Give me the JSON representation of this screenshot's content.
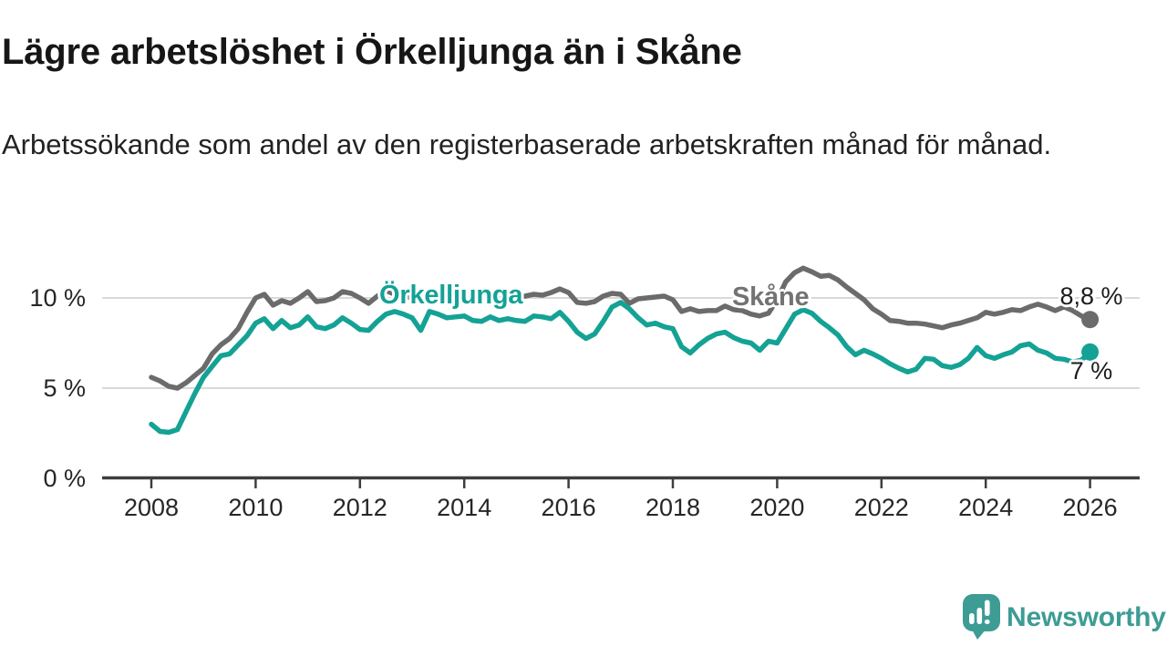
{
  "header": {
    "title": "Lägre arbetslöshet i Örkelljunga än i Skåne",
    "subtitle": "Arbetssökande som andel av den registerbaserade arbetskraften månad för månad."
  },
  "chart_data": {
    "type": "line",
    "unit": "%",
    "grid": "horizontal-light",
    "x_start_year": 2008,
    "x_step_months": 2,
    "xlim": [
      2007.1,
      2026.8
    ],
    "ylim": [
      0,
      12.4
    ],
    "x_ticks": [
      "2008",
      "2010",
      "2012",
      "2014",
      "2016",
      "2018",
      "2020",
      "2022",
      "2024",
      "2026"
    ],
    "y_ticks": [
      {
        "value": 0,
        "label": "0 %"
      },
      {
        "value": 5,
        "label": "5 %"
      },
      {
        "value": 10,
        "label": "10 %"
      }
    ],
    "series": [
      {
        "name": "Skåne",
        "color": "#6b6b6b",
        "label_color": "#737373",
        "end_label": "8,8 %",
        "end_value": 8.8,
        "values": [
          5.6,
          5.4,
          5.1,
          5.0,
          5.3,
          5.7,
          6.1,
          6.9,
          7.4,
          7.75,
          8.3,
          9.2,
          10.0,
          10.2,
          9.6,
          9.85,
          9.7,
          10.0,
          10.35,
          9.8,
          9.85,
          10.0,
          10.35,
          10.25,
          10.0,
          9.7,
          10.1,
          10.4,
          10.2,
          10.1,
          10.0,
          10.15,
          10.3,
          10.25,
          10.15,
          10.2,
          10.15,
          10.0,
          10.1,
          10.05,
          9.95,
          10.0,
          10.05,
          10.1,
          10.2,
          10.15,
          10.3,
          10.5,
          10.3,
          9.75,
          9.7,
          9.8,
          10.1,
          10.25,
          10.2,
          9.7,
          9.95,
          10.0,
          10.05,
          10.1,
          9.9,
          9.25,
          9.4,
          9.25,
          9.3,
          9.3,
          9.55,
          9.35,
          9.3,
          9.1,
          9.0,
          9.15,
          9.9,
          10.9,
          11.4,
          11.65,
          11.45,
          11.2,
          11.25,
          11.0,
          10.6,
          10.25,
          9.9,
          9.4,
          9.1,
          8.75,
          8.7,
          8.6,
          8.6,
          8.55,
          8.45,
          8.35,
          8.5,
          8.6,
          8.75,
          8.9,
          9.2,
          9.1,
          9.2,
          9.35,
          9.3,
          9.5,
          9.65,
          9.5,
          9.3,
          9.5,
          9.3,
          9.0,
          8.8
        ]
      },
      {
        "name": "Örkelljunga",
        "color": "#14a295",
        "label_color": "#14a295",
        "end_label": "7 %",
        "end_value": 7.0,
        "values": [
          3.0,
          2.6,
          2.55,
          2.7,
          3.7,
          4.7,
          5.6,
          6.2,
          6.8,
          6.9,
          7.4,
          7.9,
          8.6,
          8.85,
          8.3,
          8.75,
          8.35,
          8.5,
          8.95,
          8.4,
          8.3,
          8.5,
          8.9,
          8.6,
          8.25,
          8.2,
          8.7,
          9.1,
          9.25,
          9.1,
          8.9,
          8.2,
          9.25,
          9.1,
          8.9,
          8.95,
          9.0,
          8.75,
          8.7,
          8.95,
          8.75,
          8.85,
          8.75,
          8.7,
          9.0,
          8.95,
          8.85,
          9.2,
          8.7,
          8.1,
          7.75,
          8.0,
          8.7,
          9.5,
          9.75,
          9.4,
          8.9,
          8.5,
          8.6,
          8.4,
          8.3,
          7.3,
          6.95,
          7.4,
          7.75,
          8.0,
          8.1,
          7.8,
          7.6,
          7.5,
          7.1,
          7.6,
          7.5,
          8.3,
          9.1,
          9.35,
          9.15,
          8.7,
          8.35,
          7.95,
          7.3,
          6.85,
          7.1,
          6.9,
          6.65,
          6.35,
          6.1,
          5.9,
          6.05,
          6.65,
          6.6,
          6.25,
          6.15,
          6.3,
          6.65,
          7.25,
          6.8,
          6.65,
          6.85,
          7.0,
          7.35,
          7.45,
          7.1,
          6.95,
          6.65,
          6.6,
          6.45,
          6.55,
          7.0
        ]
      }
    ]
  },
  "footer": {
    "brand": "Newsworthy",
    "brand_color": "#3d9c94"
  },
  "icons": {
    "logo": "newsworthy-speech-bubble-bar-chart-icon"
  },
  "colors": {
    "background": "#ffffff",
    "gridline": "#d9d9d9",
    "axis": "#3e3e3e",
    "axis_text": "#262626"
  }
}
